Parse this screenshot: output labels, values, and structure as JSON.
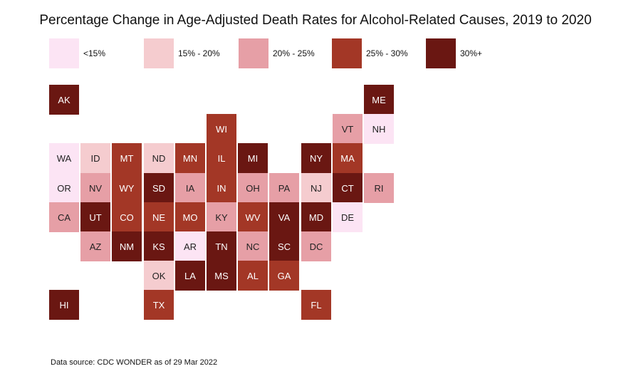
{
  "title": "Percentage Change in Age-Adjusted Death Rates for Alcohol-Related Causes, 2019 to 2020",
  "source": "Data source: CDC WONDER as of 29 Mar 2022",
  "legend": [
    {
      "label": "<15%",
      "color": "#fce4f4"
    },
    {
      "label": "15% - 20%",
      "color": "#f5cccf"
    },
    {
      "label": "20% - 25%",
      "color": "#e69fa6"
    },
    {
      "label": "25% - 30%",
      "color": "#a33726"
    },
    {
      "label": "30%+",
      "color": "#6a1712"
    }
  ],
  "states": [
    {
      "abbr": "AK",
      "bin": 4,
      "col": 0,
      "row": 0
    },
    {
      "abbr": "ME",
      "bin": 4,
      "col": 10,
      "row": 0
    },
    {
      "abbr": "WI",
      "bin": 3,
      "col": 5,
      "row": 1
    },
    {
      "abbr": "VT",
      "bin": 2,
      "col": 9,
      "row": 1
    },
    {
      "abbr": "NH",
      "bin": 0,
      "col": 10,
      "row": 1
    },
    {
      "abbr": "WA",
      "bin": 0,
      "col": 0,
      "row": 2
    },
    {
      "abbr": "ID",
      "bin": 1,
      "col": 1,
      "row": 2
    },
    {
      "abbr": "MT",
      "bin": 3,
      "col": 2,
      "row": 2
    },
    {
      "abbr": "ND",
      "bin": 1,
      "col": 3,
      "row": 2
    },
    {
      "abbr": "MN",
      "bin": 3,
      "col": 4,
      "row": 2
    },
    {
      "abbr": "IL",
      "bin": 3,
      "col": 5,
      "row": 2
    },
    {
      "abbr": "MI",
      "bin": 4,
      "col": 6,
      "row": 2
    },
    {
      "abbr": "NY",
      "bin": 4,
      "col": 8,
      "row": 2
    },
    {
      "abbr": "MA",
      "bin": 3,
      "col": 9,
      "row": 2
    },
    {
      "abbr": "OR",
      "bin": 0,
      "col": 0,
      "row": 3
    },
    {
      "abbr": "NV",
      "bin": 2,
      "col": 1,
      "row": 3
    },
    {
      "abbr": "WY",
      "bin": 3,
      "col": 2,
      "row": 3
    },
    {
      "abbr": "SD",
      "bin": 4,
      "col": 3,
      "row": 3
    },
    {
      "abbr": "IA",
      "bin": 2,
      "col": 4,
      "row": 3
    },
    {
      "abbr": "IN",
      "bin": 3,
      "col": 5,
      "row": 3
    },
    {
      "abbr": "OH",
      "bin": 2,
      "col": 6,
      "row": 3
    },
    {
      "abbr": "PA",
      "bin": 2,
      "col": 7,
      "row": 3
    },
    {
      "abbr": "NJ",
      "bin": 1,
      "col": 8,
      "row": 3
    },
    {
      "abbr": "CT",
      "bin": 4,
      "col": 9,
      "row": 3
    },
    {
      "abbr": "RI",
      "bin": 2,
      "col": 10,
      "row": 3
    },
    {
      "abbr": "CA",
      "bin": 2,
      "col": 0,
      "row": 4
    },
    {
      "abbr": "UT",
      "bin": 4,
      "col": 1,
      "row": 4
    },
    {
      "abbr": "CO",
      "bin": 3,
      "col": 2,
      "row": 4
    },
    {
      "abbr": "NE",
      "bin": 3,
      "col": 3,
      "row": 4
    },
    {
      "abbr": "MO",
      "bin": 3,
      "col": 4,
      "row": 4
    },
    {
      "abbr": "KY",
      "bin": 2,
      "col": 5,
      "row": 4
    },
    {
      "abbr": "WV",
      "bin": 3,
      "col": 6,
      "row": 4
    },
    {
      "abbr": "VA",
      "bin": 4,
      "col": 7,
      "row": 4
    },
    {
      "abbr": "MD",
      "bin": 4,
      "col": 8,
      "row": 4
    },
    {
      "abbr": "DE",
      "bin": 0,
      "col": 9,
      "row": 4
    },
    {
      "abbr": "AZ",
      "bin": 2,
      "col": 1,
      "row": 5
    },
    {
      "abbr": "NM",
      "bin": 4,
      "col": 2,
      "row": 5
    },
    {
      "abbr": "KS",
      "bin": 4,
      "col": 3,
      "row": 5
    },
    {
      "abbr": "AR",
      "bin": 0,
      "col": 4,
      "row": 5
    },
    {
      "abbr": "TN",
      "bin": 4,
      "col": 5,
      "row": 5
    },
    {
      "abbr": "NC",
      "bin": 2,
      "col": 6,
      "row": 5
    },
    {
      "abbr": "SC",
      "bin": 4,
      "col": 7,
      "row": 5
    },
    {
      "abbr": "DC",
      "bin": 2,
      "col": 8,
      "row": 5
    },
    {
      "abbr": "OK",
      "bin": 1,
      "col": 3,
      "row": 6
    },
    {
      "abbr": "LA",
      "bin": 4,
      "col": 4,
      "row": 6
    },
    {
      "abbr": "MS",
      "bin": 4,
      "col": 5,
      "row": 6
    },
    {
      "abbr": "AL",
      "bin": 3,
      "col": 6,
      "row": 6
    },
    {
      "abbr": "GA",
      "bin": 3,
      "col": 7,
      "row": 6
    },
    {
      "abbr": "HI",
      "bin": 4,
      "col": 0,
      "row": 7
    },
    {
      "abbr": "TX",
      "bin": 3,
      "col": 3,
      "row": 7
    },
    {
      "abbr": "FL",
      "bin": 3,
      "col": 8,
      "row": 7
    }
  ]
}
